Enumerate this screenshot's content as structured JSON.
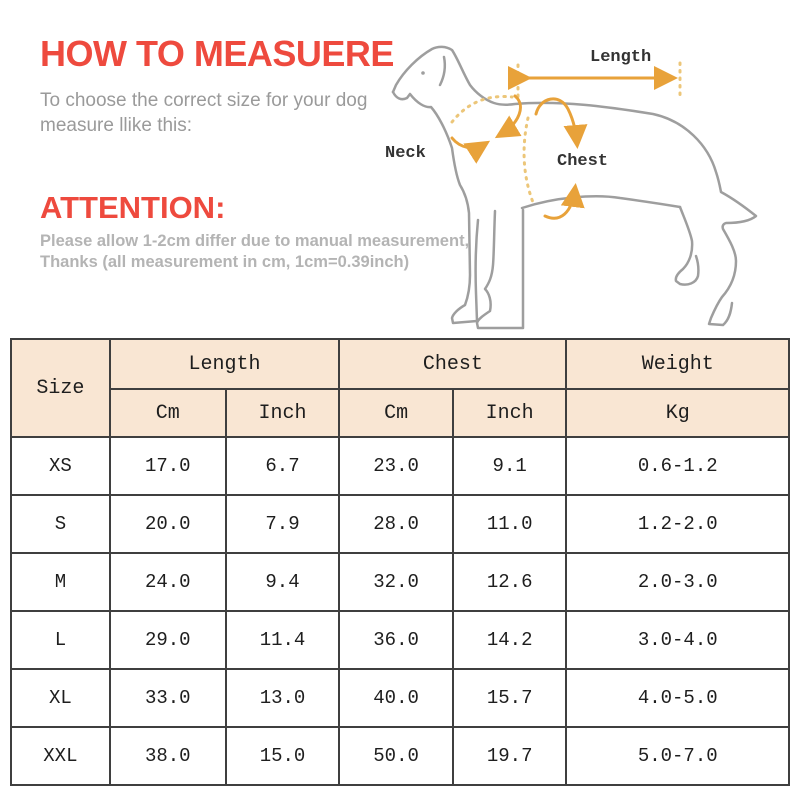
{
  "page": {
    "background": "#ffffff",
    "accent_red": "#ee4a3e",
    "arrow_orange": "#e8a23a",
    "dash_tan": "#ecc679",
    "dog_line_gray": "#9e9e9e",
    "table_border": "#3f3f3f",
    "table_header_bg": "#f9e6d3"
  },
  "header": {
    "title": "HOW TO MEASUERE",
    "subtitle": "To choose the correct size for your dog\nmeasure llike this:",
    "attention_title": "ATTENTION:",
    "attention_note": "Please allow 1-2cm differ due to manual measurement,\nThanks (all measurement in cm, 1cm=0.39inch)"
  },
  "diagram": {
    "labels": {
      "length": "Length",
      "neck": "Neck",
      "chest": "Chest"
    }
  },
  "size_table": {
    "corner_header": "Size",
    "group_headers": [
      {
        "label": "Length",
        "colspan": 2
      },
      {
        "label": "Chest",
        "colspan": 2
      },
      {
        "label": "Weight",
        "colspan": 1
      }
    ],
    "unit_headers": [
      "Cm",
      "Inch",
      "Cm",
      "Inch",
      "Kg"
    ],
    "rows": [
      {
        "size": "XS",
        "length_cm": "17.0",
        "length_inch": "6.7",
        "chest_cm": "23.0",
        "chest_inch": "9.1",
        "weight_kg": "0.6-1.2"
      },
      {
        "size": "S",
        "length_cm": "20.0",
        "length_inch": "7.9",
        "chest_cm": "28.0",
        "chest_inch": "11.0",
        "weight_kg": "1.2-2.0"
      },
      {
        "size": "M",
        "length_cm": "24.0",
        "length_inch": "9.4",
        "chest_cm": "32.0",
        "chest_inch": "12.6",
        "weight_kg": "2.0-3.0"
      },
      {
        "size": "L",
        "length_cm": "29.0",
        "length_inch": "11.4",
        "chest_cm": "36.0",
        "chest_inch": "14.2",
        "weight_kg": "3.0-4.0"
      },
      {
        "size": "XL",
        "length_cm": "33.0",
        "length_inch": "13.0",
        "chest_cm": "40.0",
        "chest_inch": "15.7",
        "weight_kg": "4.0-5.0"
      },
      {
        "size": "XXL",
        "length_cm": "38.0",
        "length_inch": "15.0",
        "chest_cm": "50.0",
        "chest_inch": "19.7",
        "weight_kg": "5.0-7.0"
      }
    ]
  }
}
